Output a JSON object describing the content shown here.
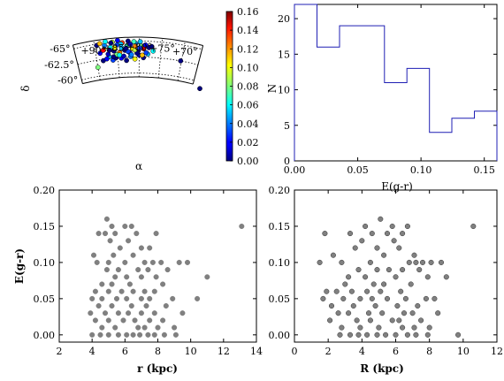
{
  "chart_data": [
    {
      "id": "sky",
      "type": "scatter",
      "xlabel": "α",
      "ylabel": "δ",
      "ra_ticks": [
        "+90°",
        "+85°",
        "+80°",
        "+75°",
        "+70°"
      ],
      "dec_ticks": [
        "-60°",
        "-62.5°",
        "-65°"
      ],
      "colorbar": {
        "colormap": "jet",
        "min": 0.0,
        "max": 0.16,
        "ticks": [
          "0.00",
          "0.02",
          "0.04",
          "0.06",
          "0.08",
          "0.10",
          "0.12",
          "0.14",
          "0.16"
        ]
      },
      "points": [
        {
          "ra": 90.0,
          "dec": -61.4,
          "e": 0.08
        },
        {
          "ra": 70.2,
          "dec": -62.5,
          "e": 0.0
        },
        {
          "ra": 64.0,
          "dec": -59.0,
          "e": 0.0
        },
        {
          "ra": 88.5,
          "dec": -62.3,
          "e": 0.0
        },
        {
          "ra": 87.0,
          "dec": -62.8,
          "e": 0.05
        },
        {
          "ra": 86.2,
          "dec": -62.2,
          "e": 0.03
        },
        {
          "ra": 85.5,
          "dec": -62.5,
          "e": 0.0
        },
        {
          "ra": 84.2,
          "dec": -62.4,
          "e": 0.02
        },
        {
          "ra": 83.0,
          "dec": -62.0,
          "e": 0.0
        },
        {
          "ra": 82.0,
          "dec": -62.6,
          "e": 0.04
        },
        {
          "ra": 81.0,
          "dec": -62.2,
          "e": 0.1
        },
        {
          "ra": 80.0,
          "dec": -62.8,
          "e": 0.01
        },
        {
          "ra": 79.0,
          "dec": -62.4,
          "e": 0.0
        },
        {
          "ra": 78.0,
          "dec": -63.0,
          "e": 0.05
        },
        {
          "ra": 89.0,
          "dec": -63.5,
          "e": 0.02
        },
        {
          "ra": 88.0,
          "dec": -64.0,
          "e": 0.1
        },
        {
          "ra": 87.2,
          "dec": -63.2,
          "e": 0.01
        },
        {
          "ra": 86.5,
          "dec": -64.2,
          "e": 0.06
        },
        {
          "ra": 85.8,
          "dec": -63.6,
          "e": 0.0
        },
        {
          "ra": 85.0,
          "dec": -64.5,
          "e": 0.03
        },
        {
          "ra": 84.5,
          "dec": -63.3,
          "e": 0.12
        },
        {
          "ra": 84.0,
          "dec": -64.0,
          "e": 0.05
        },
        {
          "ra": 83.3,
          "dec": -63.6,
          "e": 0.0
        },
        {
          "ra": 82.8,
          "dec": -64.3,
          "e": 0.07
        },
        {
          "ra": 82.2,
          "dec": -63.2,
          "e": 0.02
        },
        {
          "ra": 81.5,
          "dec": -63.8,
          "e": 0.1
        },
        {
          "ra": 80.8,
          "dec": -64.6,
          "e": 0.04
        },
        {
          "ra": 80.2,
          "dec": -63.5,
          "e": 0.0
        },
        {
          "ra": 79.6,
          "dec": -64.2,
          "e": 0.08
        },
        {
          "ra": 79.0,
          "dec": -63.8,
          "e": 0.15
        },
        {
          "ra": 78.4,
          "dec": -63.2,
          "e": 0.03
        },
        {
          "ra": 77.8,
          "dec": -64.0,
          "e": 0.0
        },
        {
          "ra": 76.8,
          "dec": -63.5,
          "e": 0.06
        },
        {
          "ra": 89.5,
          "dec": -64.8,
          "e": 0.0
        },
        {
          "ra": 88.8,
          "dec": -65.0,
          "e": 0.11
        },
        {
          "ra": 87.8,
          "dec": -64.6,
          "e": 0.04
        },
        {
          "ra": 86.0,
          "dec": -65.0,
          "e": 0.09
        },
        {
          "ra": 84.8,
          "dec": -65.2,
          "e": 0.02
        },
        {
          "ra": 83.8,
          "dec": -64.8,
          "e": 0.13
        },
        {
          "ra": 82.5,
          "dec": -65.0,
          "e": 0.0
        },
        {
          "ra": 81.2,
          "dec": -64.9,
          "e": 0.07
        },
        {
          "ra": 79.8,
          "dec": -64.9,
          "e": 0.05
        },
        {
          "ra": 86.8,
          "dec": -63.8,
          "e": 0.0
        },
        {
          "ra": 85.2,
          "dec": -63.0,
          "e": 0.08
        },
        {
          "ra": 83.6,
          "dec": -62.7,
          "e": 0.01
        },
        {
          "ra": 81.8,
          "dec": -62.9,
          "e": 0.04
        },
        {
          "ra": 80.5,
          "dec": -63.1,
          "e": 0.0
        },
        {
          "ra": 79.3,
          "dec": -62.8,
          "e": 0.11
        },
        {
          "ra": 87.6,
          "dec": -62.5,
          "e": 0.02
        },
        {
          "ra": 86.0,
          "dec": -62.7,
          "e": 0.0
        },
        {
          "ra": 84.6,
          "dec": -62.9,
          "e": 0.06
        },
        {
          "ra": 82.6,
          "dec": -63.4,
          "e": 0.03
        },
        {
          "ra": 81.0,
          "dec": -63.6,
          "e": 0.09
        },
        {
          "ra": 78.6,
          "dec": -64.4,
          "e": 0.02
        },
        {
          "ra": 77.2,
          "dec": -64.2,
          "e": 0.0
        },
        {
          "ra": 88.2,
          "dec": -63.9,
          "e": 0.14
        },
        {
          "ra": 86.3,
          "dec": -64.9,
          "e": 0.0
        },
        {
          "ra": 84.1,
          "dec": -64.6,
          "e": 0.05
        },
        {
          "ra": 83.0,
          "dec": -63.9,
          "e": 0.0
        },
        {
          "ra": 80.9,
          "dec": -64.2,
          "e": 0.12
        },
        {
          "ra": 79.9,
          "dec": -63.9,
          "e": 0.03
        },
        {
          "ra": 85.6,
          "dec": -64.1,
          "e": 0.1
        },
        {
          "ra": 87.5,
          "dec": -65.2,
          "e": 0.06
        },
        {
          "ra": 82.0,
          "dec": -64.5,
          "e": 0.01
        }
      ]
    },
    {
      "id": "hist",
      "type": "histogram",
      "xlabel": "E(g-r)",
      "ylabel": "N",
      "xlim": [
        0.0,
        0.16
      ],
      "ylim": [
        0,
        22
      ],
      "xticks": [
        "0.00",
        "0.05",
        "0.10",
        "0.15"
      ],
      "yticks": [
        "0",
        "5",
        "10",
        "15",
        "20"
      ],
      "edges": [
        0.0,
        0.0178,
        0.0356,
        0.0533,
        0.0711,
        0.0889,
        0.1067,
        0.1244,
        0.1422,
        0.16
      ],
      "counts": [
        22,
        16,
        19,
        19,
        11,
        13,
        4,
        6,
        7
      ],
      "color": "#1f1fb4"
    },
    {
      "id": "r_scatter",
      "type": "scatter",
      "xlabel": "r (kpc)",
      "ylabel": "E(g-r)",
      "xlim": [
        2,
        14
      ],
      "ylim": [
        -0.01,
        0.2
      ],
      "xticks": [
        "2",
        "4",
        "6",
        "8",
        "10",
        "12",
        "14"
      ],
      "yticks": [
        "0.00",
        "0.05",
        "0.10",
        "0.15",
        "0.20"
      ],
      "color": "#808080",
      "points": [
        [
          4.9,
          0.16
        ],
        [
          5.2,
          0.15
        ],
        [
          6.0,
          0.15
        ],
        [
          6.4,
          0.15
        ],
        [
          13.1,
          0.15
        ],
        [
          4.4,
          0.14
        ],
        [
          4.8,
          0.14
        ],
        [
          5.4,
          0.14
        ],
        [
          6.7,
          0.14
        ],
        [
          7.9,
          0.14
        ],
        [
          5.1,
          0.13
        ],
        [
          6.2,
          0.13
        ],
        [
          5.7,
          0.12
        ],
        [
          7.0,
          0.12
        ],
        [
          7.5,
          0.12
        ],
        [
          4.1,
          0.11
        ],
        [
          5.3,
          0.11
        ],
        [
          6.5,
          0.11
        ],
        [
          4.3,
          0.1
        ],
        [
          5.0,
          0.1
        ],
        [
          6.0,
          0.1
        ],
        [
          7.2,
          0.1
        ],
        [
          7.7,
          0.1
        ],
        [
          8.2,
          0.1
        ],
        [
          9.3,
          0.1
        ],
        [
          9.8,
          0.1
        ],
        [
          4.9,
          0.09
        ],
        [
          5.6,
          0.09
        ],
        [
          6.8,
          0.09
        ],
        [
          7.4,
          0.09
        ],
        [
          8.6,
          0.09
        ],
        [
          5.4,
          0.08
        ],
        [
          6.1,
          0.08
        ],
        [
          7.0,
          0.08
        ],
        [
          7.9,
          0.08
        ],
        [
          11.0,
          0.08
        ],
        [
          4.6,
          0.07
        ],
        [
          5.2,
          0.07
        ],
        [
          6.3,
          0.07
        ],
        [
          8.3,
          0.07
        ],
        [
          4.2,
          0.06
        ],
        [
          5.0,
          0.06
        ],
        [
          5.8,
          0.06
        ],
        [
          6.5,
          0.06
        ],
        [
          7.2,
          0.06
        ],
        [
          7.8,
          0.06
        ],
        [
          4.0,
          0.05
        ],
        [
          4.6,
          0.05
        ],
        [
          5.5,
          0.05
        ],
        [
          6.1,
          0.05
        ],
        [
          7.0,
          0.05
        ],
        [
          7.5,
          0.05
        ],
        [
          8.9,
          0.05
        ],
        [
          10.4,
          0.05
        ],
        [
          4.4,
          0.04
        ],
        [
          5.2,
          0.04
        ],
        [
          6.4,
          0.04
        ],
        [
          7.3,
          0.04
        ],
        [
          8.5,
          0.04
        ],
        [
          3.9,
          0.03
        ],
        [
          4.8,
          0.03
        ],
        [
          5.6,
          0.03
        ],
        [
          6.2,
          0.03
        ],
        [
          7.0,
          0.03
        ],
        [
          7.8,
          0.03
        ],
        [
          9.5,
          0.03
        ],
        [
          4.2,
          0.02
        ],
        [
          5.0,
          0.02
        ],
        [
          5.9,
          0.02
        ],
        [
          6.6,
          0.02
        ],
        [
          7.5,
          0.02
        ],
        [
          8.3,
          0.02
        ],
        [
          4.6,
          0.01
        ],
        [
          5.4,
          0.01
        ],
        [
          6.8,
          0.01
        ],
        [
          7.2,
          0.01
        ],
        [
          8.0,
          0.01
        ],
        [
          9.0,
          0.01
        ],
        [
          4.0,
          0.0
        ],
        [
          4.5,
          0.0
        ],
        [
          5.0,
          0.0
        ],
        [
          5.6,
          0.0
        ],
        [
          6.1,
          0.0
        ],
        [
          6.5,
          0.0
        ],
        [
          6.9,
          0.0
        ],
        [
          7.4,
          0.0
        ],
        [
          7.8,
          0.0
        ],
        [
          8.4,
          0.0
        ],
        [
          9.1,
          0.0
        ]
      ]
    },
    {
      "id": "R_scatter",
      "type": "scatter",
      "xlabel": "R (kpc)",
      "ylabel": "",
      "xlim": [
        0,
        12
      ],
      "ylim": [
        -0.01,
        0.2
      ],
      "xticks": [
        "0",
        "2",
        "4",
        "6",
        "8",
        "10",
        "12"
      ],
      "yticks": [
        "0.00",
        "0.05",
        "0.10",
        "0.15",
        "0.20"
      ],
      "color": "#808080",
      "points": [
        [
          5.1,
          0.16
        ],
        [
          4.2,
          0.15
        ],
        [
          5.8,
          0.15
        ],
        [
          6.7,
          0.15
        ],
        [
          10.6,
          0.15
        ],
        [
          1.8,
          0.14
        ],
        [
          3.3,
          0.14
        ],
        [
          4.6,
          0.14
        ],
        [
          5.5,
          0.14
        ],
        [
          6.4,
          0.14
        ],
        [
          4.0,
          0.13
        ],
        [
          5.9,
          0.13
        ],
        [
          3.6,
          0.12
        ],
        [
          4.9,
          0.12
        ],
        [
          6.2,
          0.12
        ],
        [
          2.3,
          0.11
        ],
        [
          5.3,
          0.11
        ],
        [
          7.1,
          0.11
        ],
        [
          1.5,
          0.1
        ],
        [
          2.8,
          0.1
        ],
        [
          4.5,
          0.1
        ],
        [
          6.8,
          0.1
        ],
        [
          7.2,
          0.1
        ],
        [
          7.6,
          0.1
        ],
        [
          8.1,
          0.1
        ],
        [
          8.7,
          0.1
        ],
        [
          3.8,
          0.09
        ],
        [
          4.9,
          0.09
        ],
        [
          5.6,
          0.09
        ],
        [
          6.4,
          0.09
        ],
        [
          7.4,
          0.09
        ],
        [
          3.2,
          0.08
        ],
        [
          4.2,
          0.08
        ],
        [
          6.0,
          0.08
        ],
        [
          7.9,
          0.08
        ],
        [
          9.0,
          0.08
        ],
        [
          3.0,
          0.07
        ],
        [
          4.7,
          0.07
        ],
        [
          5.3,
          0.07
        ],
        [
          6.9,
          0.07
        ],
        [
          1.9,
          0.06
        ],
        [
          2.5,
          0.06
        ],
        [
          3.4,
          0.06
        ],
        [
          4.3,
          0.06
        ],
        [
          5.1,
          0.06
        ],
        [
          6.3,
          0.06
        ],
        [
          1.7,
          0.05
        ],
        [
          2.9,
          0.05
        ],
        [
          3.9,
          0.05
        ],
        [
          4.6,
          0.05
        ],
        [
          5.5,
          0.05
        ],
        [
          6.6,
          0.05
        ],
        [
          7.8,
          0.05
        ],
        [
          8.3,
          0.05
        ],
        [
          2.2,
          0.04
        ],
        [
          3.5,
          0.04
        ],
        [
          4.8,
          0.04
        ],
        [
          6.1,
          0.04
        ],
        [
          7.3,
          0.04
        ],
        [
          2.6,
          0.03
        ],
        [
          3.2,
          0.03
        ],
        [
          4.4,
          0.03
        ],
        [
          5.2,
          0.03
        ],
        [
          6.5,
          0.03
        ],
        [
          7.0,
          0.03
        ],
        [
          8.5,
          0.03
        ],
        [
          2.1,
          0.02
        ],
        [
          3.7,
          0.02
        ],
        [
          4.5,
          0.02
        ],
        [
          5.8,
          0.02
        ],
        [
          6.2,
          0.02
        ],
        [
          7.5,
          0.02
        ],
        [
          2.8,
          0.01
        ],
        [
          3.9,
          0.01
        ],
        [
          5.0,
          0.01
        ],
        [
          6.4,
          0.01
        ],
        [
          7.1,
          0.01
        ],
        [
          8.0,
          0.01
        ],
        [
          2.7,
          0.0
        ],
        [
          3.3,
          0.0
        ],
        [
          3.8,
          0.0
        ],
        [
          4.3,
          0.0
        ],
        [
          4.9,
          0.0
        ],
        [
          5.4,
          0.0
        ],
        [
          6.0,
          0.0
        ],
        [
          6.7,
          0.0
        ],
        [
          7.2,
          0.0
        ],
        [
          7.9,
          0.0
        ],
        [
          9.7,
          0.0
        ]
      ]
    }
  ]
}
